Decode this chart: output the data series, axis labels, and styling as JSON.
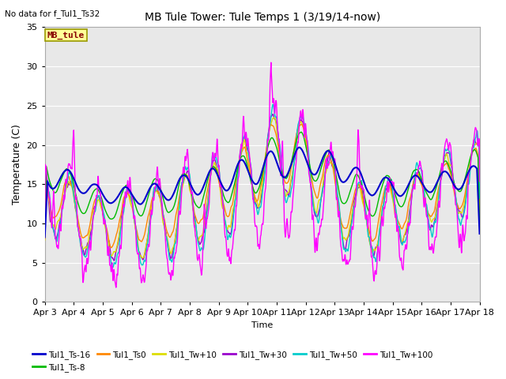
{
  "title": "MB Tule Tower: Tule Temps 1 (3/19/14-now)",
  "no_data_label": "No data for f_Tul1_Ts32",
  "mb_tule_label": "MB_tule",
  "xlabel": "Time",
  "ylabel": "Temperature (C)",
  "ylim": [
    0,
    35
  ],
  "yticks": [
    0,
    5,
    10,
    15,
    20,
    25,
    30,
    35
  ],
  "x_tick_labels": [
    "Apr 3",
    "Apr 4",
    "Apr 5",
    "Apr 6",
    "Apr 7",
    "Apr 8",
    "Apr 9",
    "Apr 10",
    "Apr 11",
    "Apr 12",
    "Apr 13",
    "Apr 14",
    "Apr 15",
    "Apr 16",
    "Apr 17",
    "Apr 18"
  ],
  "background_color": "#e8e8e8",
  "series_colors": {
    "Ts16": "#0000cc",
    "Ts8": "#00bb00",
    "Ts0": "#ff8800",
    "Tw10": "#dddd00",
    "Tw30": "#9900cc",
    "Tw50": "#00cccc",
    "Tw100": "#ff00ff"
  },
  "legend_entries": [
    {
      "label": "Tul1_Ts-16",
      "color": "#0000cc"
    },
    {
      "label": "Tul1_Ts-8",
      "color": "#00bb00"
    },
    {
      "label": "Tul1_Ts0",
      "color": "#ff8800"
    },
    {
      "label": "Tul1_Tw+10",
      "color": "#dddd00"
    },
    {
      "label": "Tul1_Tw+30",
      "color": "#9900cc"
    },
    {
      "label": "Tul1_Tw+50",
      "color": "#00cccc"
    },
    {
      "label": "Tul1_Tw+100",
      "color": "#ff00ff"
    }
  ]
}
